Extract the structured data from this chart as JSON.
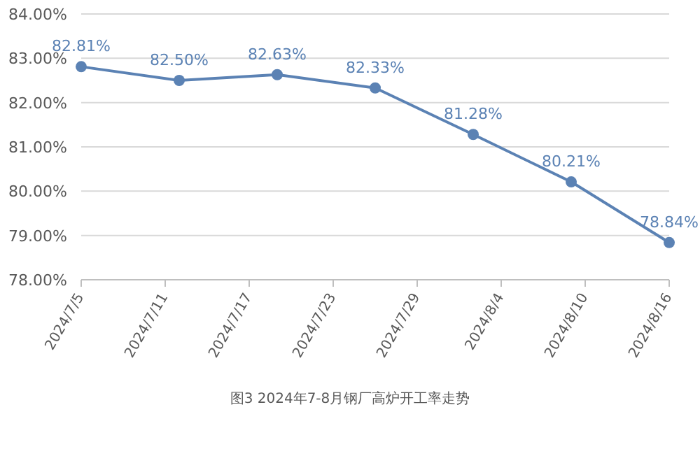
{
  "chart_data": {
    "type": "line",
    "x": [
      "2024-07-05",
      "2024-07-12",
      "2024-07-19",
      "2024-07-26",
      "2024-08-02",
      "2024-08-09",
      "2024-08-16"
    ],
    "values": [
      82.81,
      82.5,
      82.63,
      82.33,
      81.28,
      80.21,
      78.84
    ],
    "value_labels": [
      "82.81%",
      "82.50%",
      "82.63%",
      "82.33%",
      "81.28%",
      "80.21%",
      "78.84%"
    ],
    "color": "#5b82b4",
    "marker": "circle",
    "grid": "y",
    "xlim": [
      "2024-07-05",
      "2024-08-16"
    ],
    "xticks": [
      {
        "value": "2024-07-05",
        "label": "2024/7/5"
      },
      {
        "value": "2024-07-11",
        "label": "2024/7/11"
      },
      {
        "value": "2024-07-17",
        "label": "2024/7/17"
      },
      {
        "value": "2024-07-23",
        "label": "2024/7/23"
      },
      {
        "value": "2024-07-29",
        "label": "2024/7/29"
      },
      {
        "value": "2024-08-04",
        "label": "2024/8/4"
      },
      {
        "value": "2024-08-10",
        "label": "2024/8/10"
      },
      {
        "value": "2024-08-16",
        "label": "2024/8/16"
      }
    ],
    "ylim": [
      78,
      84
    ],
    "yticks": [
      {
        "value": 78,
        "label": "78.00%"
      },
      {
        "value": 79,
        "label": "79.00%"
      },
      {
        "value": 80,
        "label": "80.00%"
      },
      {
        "value": 81,
        "label": "81.00%"
      },
      {
        "value": 82,
        "label": "82.00%"
      },
      {
        "value": 83,
        "label": "83.00%"
      },
      {
        "value": 84,
        "label": "84.00%"
      }
    ],
    "annotations": [
      "图3  2024年7-8月钢厂高炉开工率走势"
    ]
  }
}
